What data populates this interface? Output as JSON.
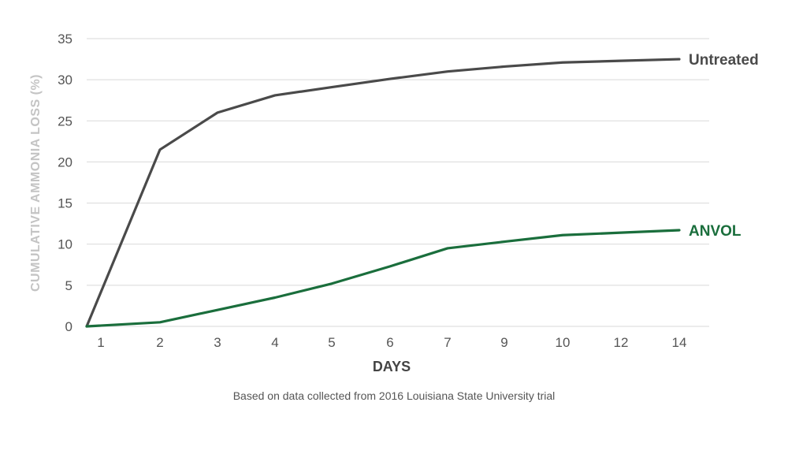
{
  "chart_data": {
    "type": "line",
    "x": [
      "1",
      "2",
      "3",
      "4",
      "5",
      "6",
      "7",
      "9",
      "10",
      "12",
      "14"
    ],
    "series": [
      {
        "name": "Untreated",
        "color": "#4a4a4a",
        "values": [
          0,
          21.5,
          26,
          28.1,
          29.1,
          30.1,
          31,
          31.6,
          32.1,
          32.3,
          32.5
        ]
      },
      {
        "name": "ANVOL",
        "color": "#1a6e3c",
        "values": [
          0,
          0.5,
          2,
          3.5,
          5.2,
          7.3,
          9.5,
          10.3,
          11.1,
          11.4,
          11.7
        ]
      }
    ],
    "xlabel": "DAYS",
    "ylabel": "CUMULATIVE AMMONIA LOSS (%)",
    "ylim": [
      0,
      35
    ],
    "yticks": [
      0,
      5,
      10,
      15,
      20,
      25,
      30,
      35
    ],
    "grid": true,
    "legend": "inline-right"
  },
  "caption": "Based on data collected from 2016 Louisiana State University trial"
}
